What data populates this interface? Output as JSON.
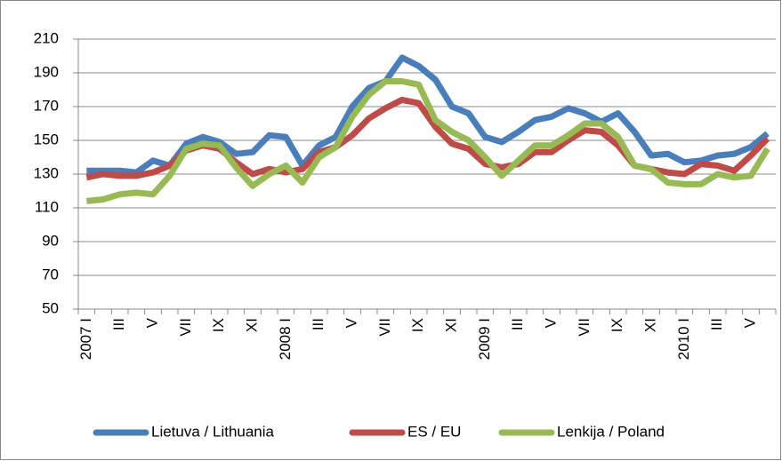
{
  "chart_data": {
    "type": "line",
    "categories": [
      "2007 I",
      null,
      "III",
      null,
      "V",
      null,
      "VII",
      null,
      "IX",
      null,
      "XI",
      null,
      "2008 I",
      null,
      "III",
      null,
      "V",
      null,
      "VII",
      null,
      "IX",
      null,
      "XI",
      null,
      "2009 I",
      null,
      "III",
      null,
      "V",
      null,
      "VII",
      null,
      "IX",
      null,
      "XI",
      null,
      "2010 I",
      null,
      "III",
      null,
      "V",
      null
    ],
    "series": [
      {
        "name": "Lietuva / Lithuania",
        "color": "#4a7ebb",
        "values": [
          132,
          132,
          132,
          131,
          138,
          135,
          148,
          152,
          149,
          142,
          143,
          153,
          152,
          135,
          147,
          152,
          170,
          181,
          185,
          199,
          194,
          186,
          170,
          166,
          152,
          149,
          155,
          162,
          164,
          169,
          166,
          161,
          166,
          155,
          141,
          142,
          137,
          138,
          141,
          142,
          146,
          154
        ]
      },
      {
        "name": "ES / EU",
        "color": "#be4b48",
        "values": [
          128,
          130,
          129,
          129,
          131,
          135,
          144,
          147,
          145,
          137,
          130,
          133,
          131,
          133,
          143,
          146,
          153,
          163,
          169,
          174,
          172,
          158,
          148,
          145,
          136,
          134,
          136,
          143,
          143,
          150,
          156,
          155,
          147,
          135,
          133,
          131,
          130,
          136,
          135,
          132,
          141,
          151
        ]
      },
      {
        "name": "Lenkija / Poland",
        "color": "#98b954",
        "values": [
          114,
          115,
          118,
          119,
          118,
          129,
          145,
          148,
          147,
          134,
          123,
          130,
          135,
          125,
          140,
          146,
          164,
          177,
          185,
          185,
          183,
          162,
          155,
          150,
          140,
          129,
          138,
          147,
          147,
          153,
          160,
          160,
          152,
          135,
          133,
          125,
          124,
          124,
          130,
          128,
          129,
          145
        ]
      }
    ],
    "ylim": [
      50,
      210
    ],
    "yticks": [
      50,
      70,
      90,
      110,
      130,
      150,
      170,
      190,
      210
    ],
    "grid": true,
    "legend": "bottom"
  }
}
